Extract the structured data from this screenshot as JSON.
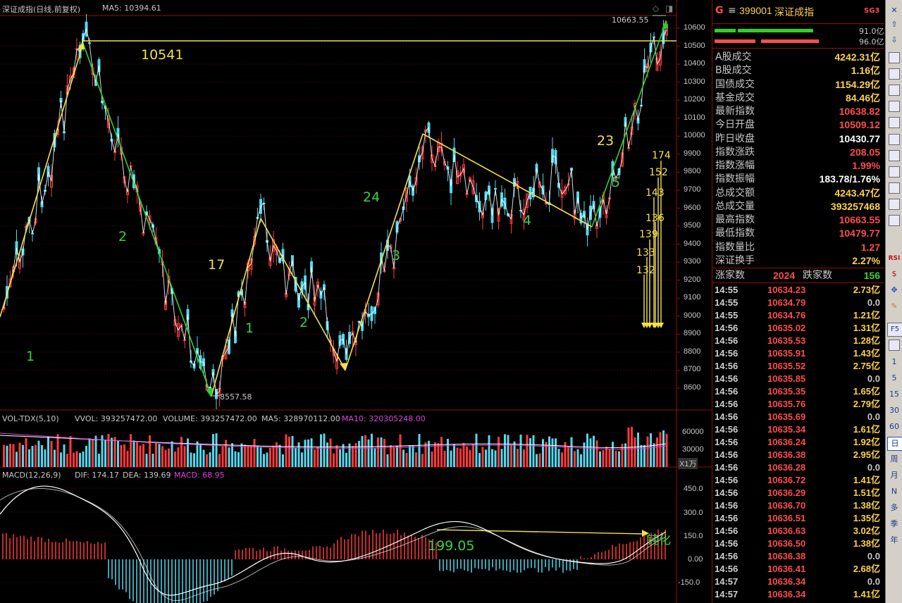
{
  "chart_header": {
    "title": "深证成指(日线,前复权)",
    "ma5": "MA5: 10394.61"
  },
  "annotations": {
    "top_level": "10541",
    "high_label": "10663.55",
    "low_label": "8557.58",
    "wave_1": "1",
    "wave_2": "2",
    "wave_17": "17",
    "wave_1b": "1",
    "wave_2b": "2",
    "wave_24": "24",
    "wave_3": "3",
    "wave_4": "4",
    "wave_23": "23",
    "wave_5": "5",
    "macd_value": "199.05",
    "divergence": "钝化",
    "macd_bars": [
      "174",
      "152",
      "143",
      "136",
      "139",
      "133",
      "132"
    ]
  },
  "price_axis": [
    "10600",
    "10500",
    "10400",
    "10300",
    "10200",
    "10100",
    "10000",
    "9900",
    "9800",
    "9700",
    "9600",
    "9500",
    "9400",
    "9300",
    "9200",
    "9100",
    "9000",
    "8900",
    "8800",
    "8700",
    "8600"
  ],
  "volume": {
    "header": {
      "name": "VOL-TDX(5,10)",
      "vvol": "VVOL: 393257472.00",
      "volume": "VOLUME: 393257472.00",
      "ma5": "MA5: 328970112.00",
      "ma10": "MA10: 320305248.00"
    },
    "axis": [
      "60000",
      "30000"
    ],
    "unit": "X1万"
  },
  "macd": {
    "header": {
      "name": "MACD(12,26,9)",
      "dif": "DIF: 174.17",
      "dea": "DEA: 139.69",
      "macd": "MACD: 68.95"
    },
    "axis": [
      "450.0",
      "300.0",
      "150.0",
      "0.00",
      "-150.0"
    ]
  },
  "panel": {
    "g": "G",
    "menu": "≡",
    "code": "399001",
    "name": "深证成指",
    "tag": "SG3",
    "bar1_val": "91.0亿",
    "bar2_val": "96.0亿",
    "rows": [
      {
        "label": "A股成交",
        "value": "4242.31亿",
        "color": "#ffd24a"
      },
      {
        "label": "B股成交",
        "value": "1.16亿",
        "color": "#ffd24a"
      },
      {
        "label": "国债成交",
        "value": "1154.29亿",
        "color": "#ffd24a"
      },
      {
        "label": "基金成交",
        "value": "84.46亿",
        "color": "#ffd24a"
      },
      {
        "label": "最新指数",
        "value": "10638.82",
        "color": "#ff4d4d"
      },
      {
        "label": "今日开盘",
        "value": "10509.12",
        "color": "#ff4d4d"
      },
      {
        "label": "昨日收盘",
        "value": "10430.77",
        "color": "#ffffff"
      },
      {
        "label": "指数涨跌",
        "value": "208.05",
        "color": "#ff4d4d"
      },
      {
        "label": "指数涨幅",
        "value": "1.99%",
        "color": "#ff4d4d"
      },
      {
        "label": "指数振幅",
        "value": "183.78/1.76%",
        "color": "#ffffff"
      },
      {
        "label": "总成交额",
        "value": "4243.47亿",
        "color": "#ffd24a"
      },
      {
        "label": "总成交量",
        "value": "393257468",
        "color": "#ffd24a"
      },
      {
        "label": "最高指数",
        "value": "10663.55",
        "color": "#ff4d4d"
      },
      {
        "label": "最低指数",
        "value": "10479.77",
        "color": "#ff4d4d"
      },
      {
        "label": "指数量比",
        "value": "1.27",
        "color": "#ff4d4d"
      },
      {
        "label": "深证换手",
        "value": "2.27%",
        "color": "#ffd24a"
      }
    ],
    "adv_label": "涨家数",
    "adv_value": "2024",
    "dec_label": "跌家数",
    "dec_value": "156",
    "ticks": [
      {
        "t": "14:55",
        "p": "10634.23",
        "v": "2.73亿"
      },
      {
        "t": "14:55",
        "p": "10634.79",
        "v": "0.0"
      },
      {
        "t": "14:55",
        "p": "10634.76",
        "v": "1.21亿"
      },
      {
        "t": "14:56",
        "p": "10635.02",
        "v": "1.31亿"
      },
      {
        "t": "14:56",
        "p": "10635.53",
        "v": "1.28亿"
      },
      {
        "t": "14:56",
        "p": "10635.91",
        "v": "1.43亿"
      },
      {
        "t": "14:56",
        "p": "10635.52",
        "v": "2.75亿"
      },
      {
        "t": "14:56",
        "p": "10635.85",
        "v": "0.0"
      },
      {
        "t": "14:56",
        "p": "10635.35",
        "v": "1.65亿"
      },
      {
        "t": "14:56",
        "p": "10635.76",
        "v": "2.79亿"
      },
      {
        "t": "14:56",
        "p": "10635.69",
        "v": "0.0"
      },
      {
        "t": "14:56",
        "p": "10635.34",
        "v": "1.61亿"
      },
      {
        "t": "14:56",
        "p": "10636.24",
        "v": "1.92亿"
      },
      {
        "t": "14:56",
        "p": "10636.38",
        "v": "2.95亿"
      },
      {
        "t": "14:56",
        "p": "10636.28",
        "v": "0.0"
      },
      {
        "t": "14:56",
        "p": "10636.72",
        "v": "1.41亿"
      },
      {
        "t": "14:56",
        "p": "10636.29",
        "v": "1.51亿"
      },
      {
        "t": "14:56",
        "p": "10636.70",
        "v": "1.38亿"
      },
      {
        "t": "14:56",
        "p": "10636.51",
        "v": "1.35亿"
      },
      {
        "t": "14:56",
        "p": "10636.63",
        "v": "3.02亿"
      },
      {
        "t": "14:56",
        "p": "10636.50",
        "v": "1.38亿"
      },
      {
        "t": "14:56",
        "p": "10636.38",
        "v": "0.0"
      },
      {
        "t": "14:56",
        "p": "10636.41",
        "v": "2.68亿"
      },
      {
        "t": "14:57",
        "p": "10636.34",
        "v": "0.0"
      },
      {
        "t": "14:57",
        "p": "10636.34",
        "v": "1.41亿"
      }
    ]
  },
  "toolbar": {
    "labels": [
      "1",
      "5",
      "15",
      "30",
      "60",
      "日",
      "周",
      "月",
      "N",
      "多",
      "季",
      "年"
    ],
    "rsi": "RSI",
    "f5": "F5"
  }
}
